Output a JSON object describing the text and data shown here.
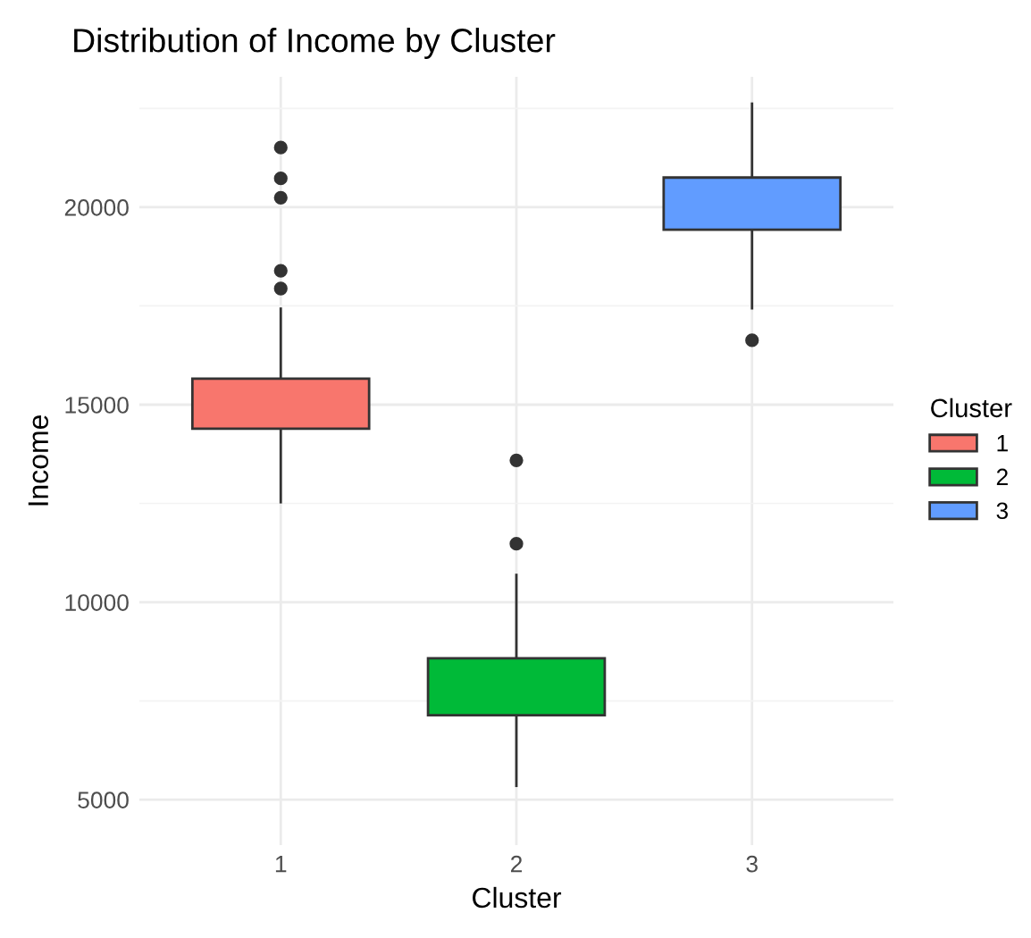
{
  "chart_data": {
    "type": "box",
    "title": "Distribution of Income by Cluster",
    "xlabel": "Cluster",
    "ylabel": "Income",
    "legend_title": "Cluster",
    "categories": [
      "1",
      "2",
      "3"
    ],
    "series": [
      {
        "name": "1",
        "color": "#f8766d",
        "boxes": [
          {
            "low": 12530,
            "q1": 14390,
            "median": 15000,
            "q3": 15660,
            "high": 17430,
            "outliers": [
              17940,
              18390,
              20240,
              20730,
              21510
            ]
          },
          null,
          null
        ]
      },
      {
        "name": "2",
        "color": "#00ba38",
        "boxes": [
          null,
          {
            "low": 5350,
            "q1": 7140,
            "median": 7870,
            "q3": 8580,
            "high": 10690,
            "outliers": [
              11480,
              13590
            ]
          },
          null
        ]
      },
      {
        "name": "3",
        "color": "#619cff",
        "boxes": [
          null,
          null,
          {
            "low": 17440,
            "q1": 19430,
            "median": 20180,
            "q3": 20750,
            "high": 22620,
            "outliers": [
              16630
            ]
          }
        ]
      }
    ],
    "ylim": [
      3850,
      23300
    ],
    "yticks": [
      5000,
      10000,
      15000,
      20000
    ],
    "grid": true,
    "legend": "right"
  }
}
